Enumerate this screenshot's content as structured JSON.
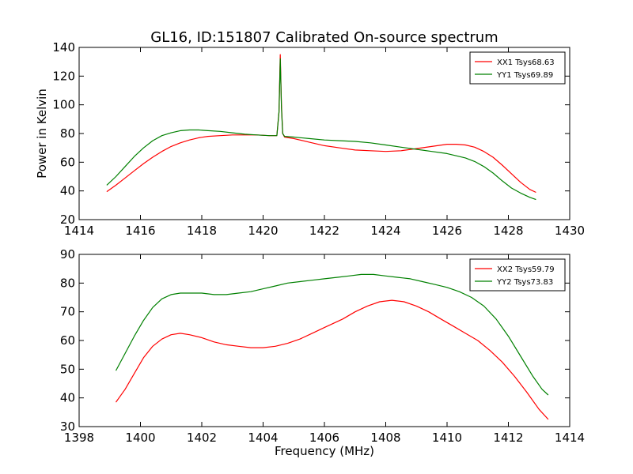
{
  "figure": {
    "title": "GL16, ID:151807 Calibrated On-source spectrum"
  },
  "chart_data": [
    {
      "type": "line",
      "xlabel": "",
      "ylabel": "Power in Kelvin",
      "xlim": [
        1414,
        1430
      ],
      "ylim": [
        20,
        140
      ],
      "xticks": [
        1414,
        1416,
        1418,
        1420,
        1422,
        1424,
        1426,
        1428,
        1430
      ],
      "yticks": [
        20,
        40,
        60,
        80,
        100,
        120,
        140
      ],
      "legend": "top-right",
      "series": [
        {
          "name": "XX1 Tsys68.63",
          "color": "#ff0000",
          "x": [
            1414.9,
            1415.2,
            1415.5,
            1415.8,
            1416.1,
            1416.4,
            1416.7,
            1417.0,
            1417.3,
            1417.6,
            1417.9,
            1418.2,
            1418.6,
            1419.0,
            1419.4,
            1419.8,
            1420.2,
            1420.45,
            1420.52,
            1420.56,
            1420.6,
            1420.64,
            1420.7,
            1421.0,
            1421.5,
            1422.0,
            1422.5,
            1423.0,
            1423.5,
            1424.0,
            1424.5,
            1425.0,
            1425.5,
            1426.0,
            1426.3,
            1426.6,
            1426.9,
            1427.2,
            1427.5,
            1427.8,
            1428.1,
            1428.4,
            1428.7,
            1428.9
          ],
          "y": [
            39.5,
            44,
            49,
            54,
            59,
            63.5,
            67.5,
            71,
            73.5,
            75.5,
            77,
            78,
            78.5,
            79,
            79,
            79,
            78.5,
            78.5,
            95,
            135,
            100,
            80,
            77.5,
            76.5,
            74,
            71.5,
            70,
            68.5,
            68,
            67.5,
            68,
            69.5,
            71,
            72.5,
            72.5,
            72,
            70.5,
            67.5,
            63.5,
            58,
            52,
            46,
            41,
            39
          ]
        },
        {
          "name": "YY1 Tsys69.89",
          "color": "#008000",
          "x": [
            1414.9,
            1415.2,
            1415.5,
            1415.8,
            1416.1,
            1416.4,
            1416.7,
            1417.0,
            1417.3,
            1417.6,
            1417.9,
            1418.2,
            1418.6,
            1419.0,
            1419.4,
            1419.8,
            1420.2,
            1420.45,
            1420.52,
            1420.56,
            1420.6,
            1420.64,
            1420.7,
            1421.0,
            1421.5,
            1422.0,
            1422.5,
            1423.0,
            1423.5,
            1424.0,
            1424.5,
            1425.0,
            1425.5,
            1426.0,
            1426.3,
            1426.6,
            1426.9,
            1427.2,
            1427.5,
            1427.8,
            1428.1,
            1428.4,
            1428.7,
            1428.9
          ],
          "y": [
            44,
            50,
            57,
            64,
            70,
            75,
            78.5,
            80.5,
            82,
            82.5,
            82.5,
            82,
            81.5,
            80.5,
            79.5,
            79,
            78.5,
            78.5,
            95,
            132,
            98,
            80,
            78,
            77.5,
            76.5,
            75.5,
            75,
            74.5,
            73.5,
            72,
            70.5,
            69,
            67.5,
            66,
            64.5,
            63,
            60.5,
            57,
            52.5,
            47,
            42,
            38.5,
            35.5,
            34
          ]
        }
      ]
    },
    {
      "type": "line",
      "xlabel": "Frequency (MHz)",
      "ylabel": "",
      "xlim": [
        1398,
        1414
      ],
      "ylim": [
        30,
        90
      ],
      "xticks": [
        1398,
        1400,
        1402,
        1404,
        1406,
        1408,
        1410,
        1412,
        1414
      ],
      "yticks": [
        30,
        40,
        50,
        60,
        70,
        80,
        90
      ],
      "legend": "top-right",
      "series": [
        {
          "name": "XX2 Tsys59.79",
          "color": "#ff0000",
          "x": [
            1399.2,
            1399.5,
            1399.8,
            1400.1,
            1400.4,
            1400.7,
            1401.0,
            1401.3,
            1401.6,
            1402.0,
            1402.4,
            1402.8,
            1403.2,
            1403.6,
            1404.0,
            1404.4,
            1404.8,
            1405.2,
            1405.6,
            1406.0,
            1406.3,
            1406.6,
            1407.0,
            1407.4,
            1407.8,
            1408.2,
            1408.6,
            1409.0,
            1409.4,
            1409.8,
            1410.2,
            1410.6,
            1411.0,
            1411.4,
            1411.8,
            1412.2,
            1412.6,
            1413.0,
            1413.3
          ],
          "y": [
            38.5,
            43,
            48.5,
            54,
            58,
            60.5,
            62,
            62.5,
            62,
            61,
            59.5,
            58.5,
            58,
            57.5,
            57.5,
            58,
            59,
            60.5,
            62.5,
            64.5,
            66,
            67.5,
            70,
            72,
            73.5,
            74,
            73.5,
            72,
            70,
            67.5,
            65,
            62.5,
            60,
            56.5,
            52.5,
            47.5,
            42,
            36,
            32.5
          ]
        },
        {
          "name": "YY2 Tsys73.83",
          "color": "#008000",
          "x": [
            1399.2,
            1399.5,
            1399.8,
            1400.1,
            1400.4,
            1400.7,
            1401.0,
            1401.3,
            1401.6,
            1402.0,
            1402.4,
            1402.8,
            1403.2,
            1403.6,
            1404.0,
            1404.4,
            1404.8,
            1405.2,
            1405.6,
            1406.0,
            1406.4,
            1406.8,
            1407.2,
            1407.6,
            1408.0,
            1408.4,
            1408.8,
            1409.2,
            1409.6,
            1410.0,
            1410.4,
            1410.8,
            1411.2,
            1411.6,
            1412.0,
            1412.4,
            1412.8,
            1413.1,
            1413.3
          ],
          "y": [
            49.5,
            55.5,
            61.5,
            67,
            71.5,
            74.5,
            76,
            76.5,
            76.5,
            76.5,
            76,
            76,
            76.5,
            77,
            78,
            79,
            80,
            80.5,
            81,
            81.5,
            82,
            82.5,
            83,
            83,
            82.5,
            82,
            81.5,
            80.5,
            79.5,
            78.5,
            77,
            75,
            72,
            67.5,
            61.5,
            54.5,
            47.5,
            43,
            41
          ]
        }
      ]
    }
  ]
}
